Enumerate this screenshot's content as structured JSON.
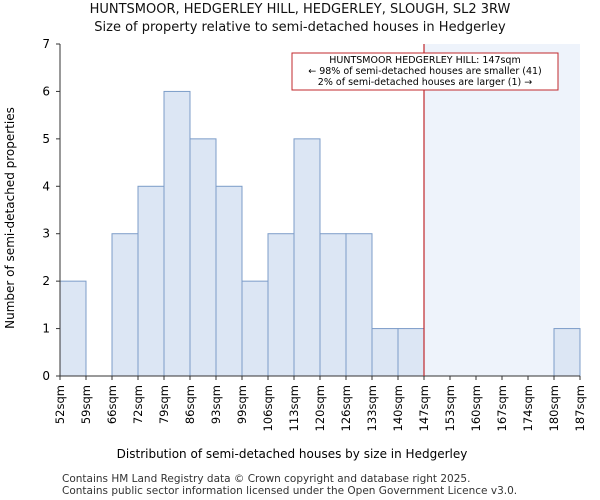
{
  "chart_data": {
    "type": "bar",
    "title": "HUNTSMOOR, HEDGERLEY HILL, HEDGERLEY, SLOUGH, SL2 3RW",
    "subtitle": "Size of property relative to semi-detached houses in Hedgerley",
    "xlabel": "Distribution of semi-detached houses by size in Hedgerley",
    "ylabel": "Number of semi-detached properties",
    "x_tick_labels": [
      "52sqm",
      "59sqm",
      "66sqm",
      "72sqm",
      "79sqm",
      "86sqm",
      "93sqm",
      "99sqm",
      "106sqm",
      "113sqm",
      "120sqm",
      "126sqm",
      "133sqm",
      "140sqm",
      "147sqm",
      "153sqm",
      "160sqm",
      "167sqm",
      "174sqm",
      "180sqm",
      "187sqm"
    ],
    "values": [
      2,
      0,
      3,
      4,
      6,
      5,
      4,
      2,
      3,
      5,
      3,
      3,
      1,
      1,
      0,
      0,
      0,
      0,
      0,
      1
    ],
    "ylim": [
      0,
      7
    ],
    "y_ticks": [
      0,
      1,
      2,
      3,
      4,
      5,
      6,
      7
    ],
    "marker_bin_index": 14,
    "annotation": {
      "line1": "HUNTSMOOR HEDGERLEY HILL: 147sqm",
      "line2": "← 98% of semi-detached houses are smaller (41)",
      "line3": "2% of semi-detached houses are larger (1) →"
    },
    "colors": {
      "bar_fill": "#dce6f4",
      "bar_stroke": "#7c9cc8",
      "marker": "#c0282d",
      "highlight_fill": "#eef3fb"
    }
  },
  "footer": {
    "line1": "Contains HM Land Registry data © Crown copyright and database right 2025.",
    "line2": "Contains public sector information licensed under the Open Government Licence v3.0."
  }
}
